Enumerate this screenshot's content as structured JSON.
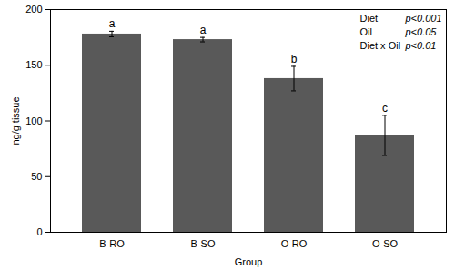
{
  "chart_data": {
    "type": "bar",
    "categories": [
      "B-RO",
      "B-SO",
      "O-RO",
      "O-SO"
    ],
    "values": [
      178,
      173,
      138,
      87
    ],
    "errors": [
      2.5,
      2,
      11,
      18
    ],
    "significance_letters": [
      "a",
      "a",
      "b",
      "c"
    ],
    "color": "#595959",
    "xlabel": "Group",
    "ylabel": "ng/g tissue",
    "ylim": [
      0,
      200
    ],
    "yticks": [
      0,
      50,
      100,
      150,
      200
    ],
    "grid": false,
    "stats": [
      {
        "label": "Diet",
        "p": "p<0.001"
      },
      {
        "label": "Oil",
        "p": "p<0.05"
      },
      {
        "label": "Diet x Oil",
        "p": "p<0.01"
      }
    ]
  }
}
